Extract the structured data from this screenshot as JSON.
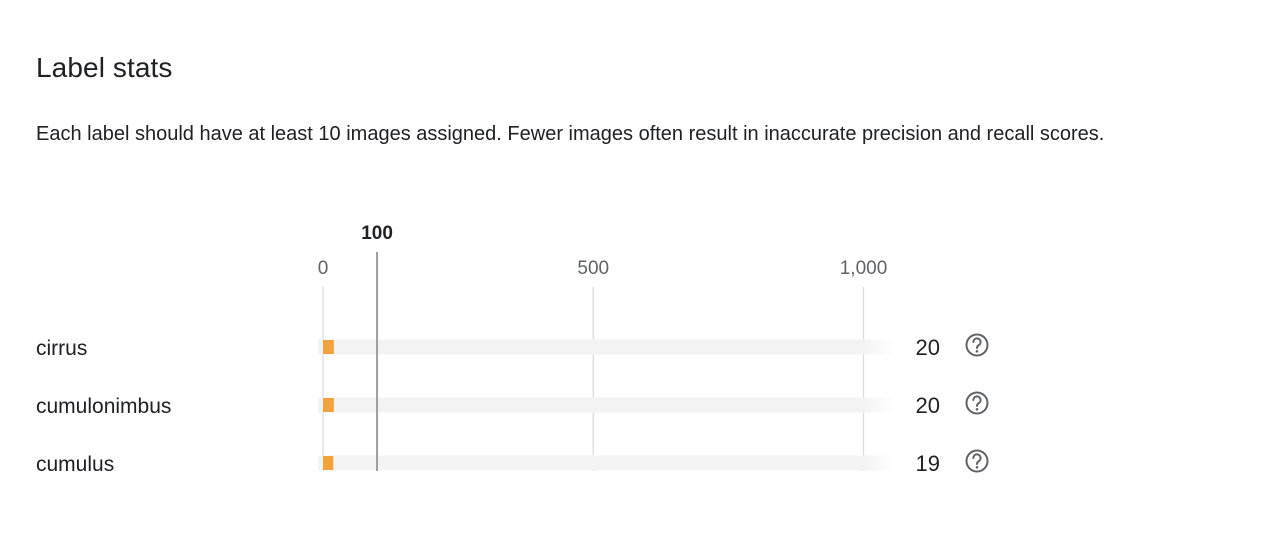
{
  "section": {
    "title": "Label stats",
    "description": "Each label should have at least 10 images assigned. Fewer images often result in inaccurate precision and recall scores."
  },
  "chart_data": {
    "type": "bar",
    "orientation": "horizontal",
    "categories": [
      "cirrus",
      "cumulonimbus",
      "cumulus"
    ],
    "values": [
      20,
      20,
      19
    ],
    "value_labels": [
      "20",
      "20",
      "19"
    ],
    "x_ticks": [
      {
        "value": 0,
        "label": "0"
      },
      {
        "value": 500,
        "label": "500"
      },
      {
        "value": 1000,
        "label": "1,000"
      }
    ],
    "threshold": {
      "value": 100,
      "label": "100"
    },
    "xlim": [
      0,
      1050
    ],
    "grid": true,
    "bar_color": "#f2a33a",
    "track_color": "#f3f3f3",
    "gridline_color": "#dadce0",
    "threshold_color": "#9e9e9e",
    "help_icon": "help-circle-icon"
  }
}
